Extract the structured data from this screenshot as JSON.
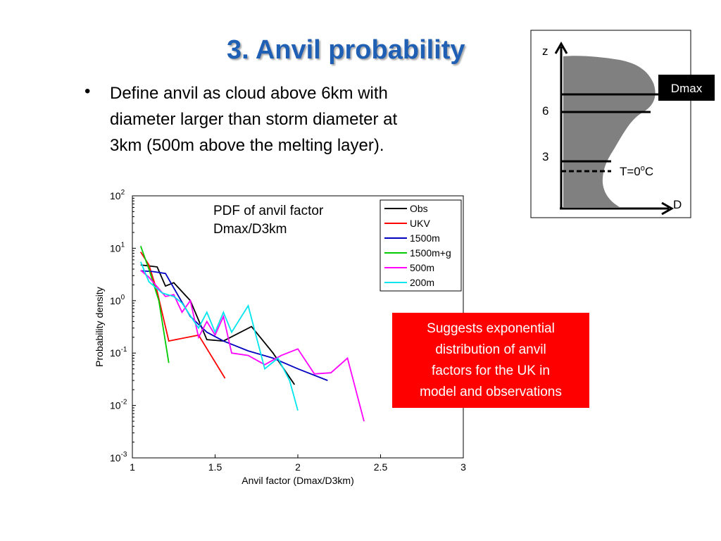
{
  "slide": {
    "title": "3. Anvil probability",
    "bullet_symbol": "•",
    "bullet_line1": "Define anvil as cloud above 6km with",
    "bullet_line2": "diameter larger than storm diameter at",
    "bullet_line3": "3km (500m above the melting layer).",
    "pdf_label_line1": "PDF of anvil factor",
    "pdf_label_line2": "Dmax/D3km",
    "callout_line1": "Suggests exponential",
    "callout_line2": "distribution of anvil",
    "callout_line3": "factors for the UK in",
    "callout_line4": "model and observations",
    "callout_color": "#ff0000"
  },
  "schematic": {
    "z_label": "z",
    "d_label": "D",
    "dmax_label": "Dmax",
    "level_6_label": "6",
    "level_3_label": "3",
    "melting_label": "T=0",
    "melting_sup": "o",
    "melting_unit": "C",
    "cloud_color": "#808080"
  },
  "chart_data": {
    "type": "line",
    "xlabel": "Anvil factor (Dmax/D3km)",
    "ylabel": "Probability density",
    "xlim": [
      1,
      3
    ],
    "ylim": [
      0.001,
      100
    ],
    "yscale": "log",
    "x_ticks": [
      "1",
      "1.5",
      "2",
      "2.5",
      "3"
    ],
    "y_tick_exponents": [
      "2",
      "1",
      "0",
      "-1",
      "-2",
      "-3"
    ],
    "y_tick_base": "10",
    "grid": false,
    "legend_position": "top-right",
    "series": [
      {
        "name": "Obs",
        "color": "#000000",
        "x": [
          1.05,
          1.15,
          1.2,
          1.25,
          1.35,
          1.45,
          1.55,
          1.72,
          1.85,
          1.98
        ],
        "y": [
          4.8,
          4.4,
          1.9,
          2.2,
          1.0,
          0.18,
          0.17,
          0.32,
          0.1,
          0.025
        ]
      },
      {
        "name": "UKV",
        "color": "#ff0000",
        "x": [
          1.05,
          1.1,
          1.15,
          1.22,
          1.4,
          1.56
        ],
        "y": [
          8.5,
          4.8,
          1.5,
          0.17,
          0.22,
          0.033
        ]
      },
      {
        "name": "1500m",
        "color": "#0000c0",
        "x": [
          1.05,
          1.12,
          1.2,
          1.28,
          1.35,
          1.45,
          1.55,
          1.7,
          1.85,
          2.0,
          2.18
        ],
        "y": [
          3.7,
          3.6,
          3.3,
          1.2,
          0.5,
          0.25,
          0.17,
          0.11,
          0.08,
          0.05,
          0.03
        ]
      },
      {
        "name": "1500m+g",
        "color": "#00cc00",
        "x": [
          1.05,
          1.1,
          1.16,
          1.22
        ],
        "y": [
          11,
          4.0,
          1.0,
          0.065
        ]
      },
      {
        "name": "500m",
        "color": "#ff00ff",
        "x": [
          1.05,
          1.1,
          1.2,
          1.25,
          1.3,
          1.35,
          1.4,
          1.45,
          1.5,
          1.55,
          1.6,
          1.7,
          1.8,
          1.9,
          2.0,
          2.1,
          2.2,
          2.3,
          2.4
        ],
        "y": [
          3.8,
          2.8,
          1.2,
          1.3,
          0.6,
          1.0,
          0.2,
          0.4,
          0.22,
          0.5,
          0.1,
          0.09,
          0.06,
          0.09,
          0.12,
          0.04,
          0.042,
          0.08,
          0.005
        ]
      },
      {
        "name": "200m",
        "color": "#00e5ee",
        "x": [
          1.05,
          1.1,
          1.18,
          1.25,
          1.3,
          1.4,
          1.45,
          1.5,
          1.55,
          1.6,
          1.7,
          1.8,
          1.88,
          1.95,
          2.0
        ],
        "y": [
          5.5,
          2.3,
          1.4,
          1.2,
          0.9,
          0.3,
          0.6,
          0.25,
          0.6,
          0.25,
          0.8,
          0.05,
          0.08,
          0.03,
          0.008
        ]
      }
    ]
  }
}
